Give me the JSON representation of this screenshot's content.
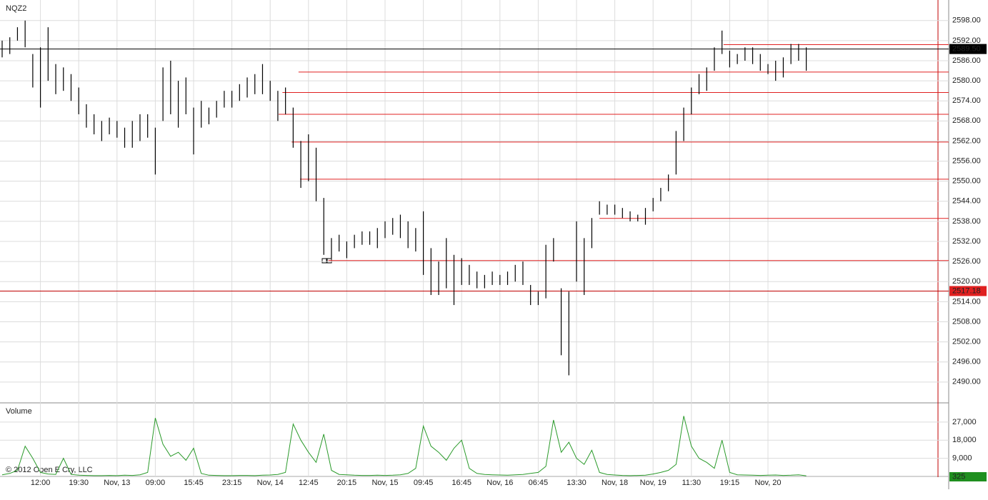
{
  "chart_data": {
    "type": "ohlc",
    "title": "NQZ2",
    "copyright": "© 2012 Open E Cry, LLC",
    "color": "#000000",
    "categories": [
      null,
      null,
      null,
      null,
      null,
      "12:00",
      null,
      null,
      null,
      null,
      "19:30",
      null,
      null,
      null,
      null,
      "Nov, 13",
      null,
      null,
      null,
      null,
      "09:00",
      null,
      null,
      null,
      null,
      "15:45",
      null,
      null,
      null,
      null,
      "23:15",
      null,
      null,
      null,
      null,
      "Nov, 14",
      null,
      null,
      null,
      null,
      "12:45",
      null,
      null,
      null,
      null,
      "20:15",
      null,
      null,
      null,
      null,
      "Nov, 15",
      null,
      null,
      null,
      null,
      "09:45",
      null,
      null,
      null,
      null,
      "16:45",
      null,
      null,
      null,
      null,
      "Nov, 16",
      null,
      null,
      null,
      null,
      "06:45",
      null,
      null,
      null,
      null,
      "13:30",
      null,
      null,
      null,
      null,
      "Nov, 18",
      null,
      null,
      null,
      null,
      "Nov, 19",
      null,
      null,
      null,
      null,
      "11:30",
      null,
      null,
      null,
      null,
      "19:15",
      null,
      null,
      null,
      null,
      "Nov, 20",
      null,
      null,
      null,
      null,
      null
    ],
    "highs": [
      2592,
      2593,
      2596,
      2598,
      2588,
      2590,
      2596,
      2585,
      2584,
      2582,
      2578,
      2573,
      2570,
      2568,
      2569,
      2568,
      2566,
      2568,
      2570,
      2570,
      2566,
      2584,
      2586,
      2580,
      2581,
      2572,
      2574,
      2572,
      2574,
      2577,
      2577,
      2579,
      2581,
      2582,
      2585,
      2580,
      2577,
      2578,
      2572,
      2562,
      2564,
      2560,
      2545,
      2533,
      2534,
      2532,
      2534,
      2535,
      2535,
      2536,
      2538,
      2539,
      2540,
      2538,
      2536,
      2541,
      2530,
      2526,
      2533,
      2528,
      2527,
      2525,
      2523,
      2522,
      2523,
      2522,
      2523,
      2525,
      2526,
      2519,
      2517,
      2531,
      2533,
      2518,
      2517,
      2538,
      2533,
      2539,
      2544,
      2543,
      2543,
      2542,
      2541,
      2540,
      2542,
      2545,
      2548,
      2552,
      2565,
      2572,
      2578,
      2582,
      2584,
      2590,
      2595,
      2589,
      2588,
      2590,
      2590,
      2588,
      2585,
      2586,
      2587,
      2591,
      2591,
      2590
    ],
    "lows": [
      2587,
      2588,
      2592,
      2590,
      2578,
      2572,
      2580,
      2576,
      2577,
      2574,
      2570,
      2566,
      2564,
      2562,
      2564,
      2563,
      2560,
      2560,
      2562,
      2563,
      2552,
      2568,
      2570,
      2566,
      2570,
      2558,
      2566,
      2567,
      2569,
      2572,
      2572,
      2574,
      2575,
      2576,
      2576,
      2574,
      2568,
      2570,
      2560,
      2548,
      2550,
      2544,
      2528,
      2527,
      2529,
      2527,
      2530,
      2531,
      2531,
      2530,
      2533,
      2534,
      2533,
      2530,
      2529,
      2522,
      2516,
      2516,
      2518,
      2513,
      2519,
      2519,
      2518,
      2518,
      2519,
      2519,
      2519,
      2520,
      2519,
      2513,
      2513,
      2515,
      2526,
      2498,
      2492,
      2520,
      2516,
      2530,
      2540,
      2540,
      2540,
      2539,
      2538,
      2538,
      2537,
      2541,
      2544,
      2547,
      2552,
      2562,
      2570,
      2576,
      2577,
      2583,
      2588,
      2584,
      2585,
      2586,
      2585,
      2583,
      2582,
      2580,
      2581,
      2585,
      2586,
      2583
    ],
    "ylim": [
      2484.2,
      2603.5
    ],
    "yticks": [
      {
        "value": 2490,
        "label": "2490.00"
      },
      {
        "value": 2496,
        "label": "2496.00"
      },
      {
        "value": 2502,
        "label": "2502.00"
      },
      {
        "value": 2508,
        "label": "2508.00"
      },
      {
        "value": 2514,
        "label": "2514.00"
      },
      {
        "value": 2520,
        "label": "2520.00"
      },
      {
        "value": 2526,
        "label": "2526.00"
      },
      {
        "value": 2532,
        "label": "2532.00"
      },
      {
        "value": 2538,
        "label": "2538.00"
      },
      {
        "value": 2544,
        "label": "2544.00"
      },
      {
        "value": 2550,
        "label": "2550.00"
      },
      {
        "value": 2556,
        "label": "2556.00"
      },
      {
        "value": 2562,
        "label": "2562.00"
      },
      {
        "value": 2568,
        "label": "2568.00"
      },
      {
        "value": 2574,
        "label": "2574.00"
      },
      {
        "value": 2580,
        "label": "2580.00"
      },
      {
        "value": 2586,
        "label": "2586.00"
      },
      {
        "value": 2592,
        "label": "2592.00"
      },
      {
        "value": 2598,
        "label": "2598.00"
      }
    ],
    "last_price": {
      "value": 2589.5,
      "label": "2589.50"
    },
    "alert_level": {
      "value": 2517.18,
      "label": "2517.18"
    },
    "level_color": "#e02020",
    "levels": [
      {
        "value": 2590.8,
        "from": 94.2
      },
      {
        "value": 2582.6,
        "from": 38.7
      },
      {
        "value": 2576.5,
        "from": 36.6
      },
      {
        "value": 2570,
        "from": 36.1
      },
      {
        "value": 2561.7,
        "from": 37.8
      },
      {
        "value": 2550.6,
        "from": 38.9
      },
      {
        "value": 2538.9,
        "from": 78
      },
      {
        "value": 2526.3,
        "from": 42.6
      }
    ],
    "volume": {
      "title": "Volume",
      "color": "#2a9a2a",
      "values": [
        800,
        1500,
        3000,
        15000,
        9000,
        2000,
        1200,
        1000,
        9000,
        1000,
        600,
        500,
        400,
        400,
        500,
        400,
        600,
        500,
        800,
        2000,
        29000,
        16000,
        10000,
        12000,
        8000,
        14000,
        1500,
        600,
        500,
        400,
        400,
        500,
        500,
        400,
        600,
        700,
        1000,
        2000,
        26000,
        18000,
        12000,
        7000,
        21000,
        3000,
        1000,
        800,
        600,
        500,
        500,
        600,
        500,
        600,
        800,
        1500,
        4000,
        25000,
        15000,
        12000,
        8000,
        14000,
        18000,
        4000,
        1500,
        1000,
        800,
        700,
        600,
        800,
        1000,
        1500,
        2000,
        5000,
        28000,
        12000,
        17000,
        9000,
        6000,
        13000,
        2000,
        1000,
        700,
        500,
        400,
        500,
        600,
        1200,
        2000,
        3000,
        6000,
        30000,
        15000,
        9000,
        7000,
        4000,
        18000,
        2000,
        800,
        700,
        600,
        500,
        600,
        700,
        500,
        600,
        800,
        325
      ],
      "ylim": [
        0,
        34400
      ],
      "yticks": [
        {
          "value": 9000,
          "label": "9,000"
        },
        {
          "value": 18000,
          "label": "18,000"
        },
        {
          "value": 27000,
          "label": "27,000"
        }
      ],
      "last": 325
    }
  }
}
